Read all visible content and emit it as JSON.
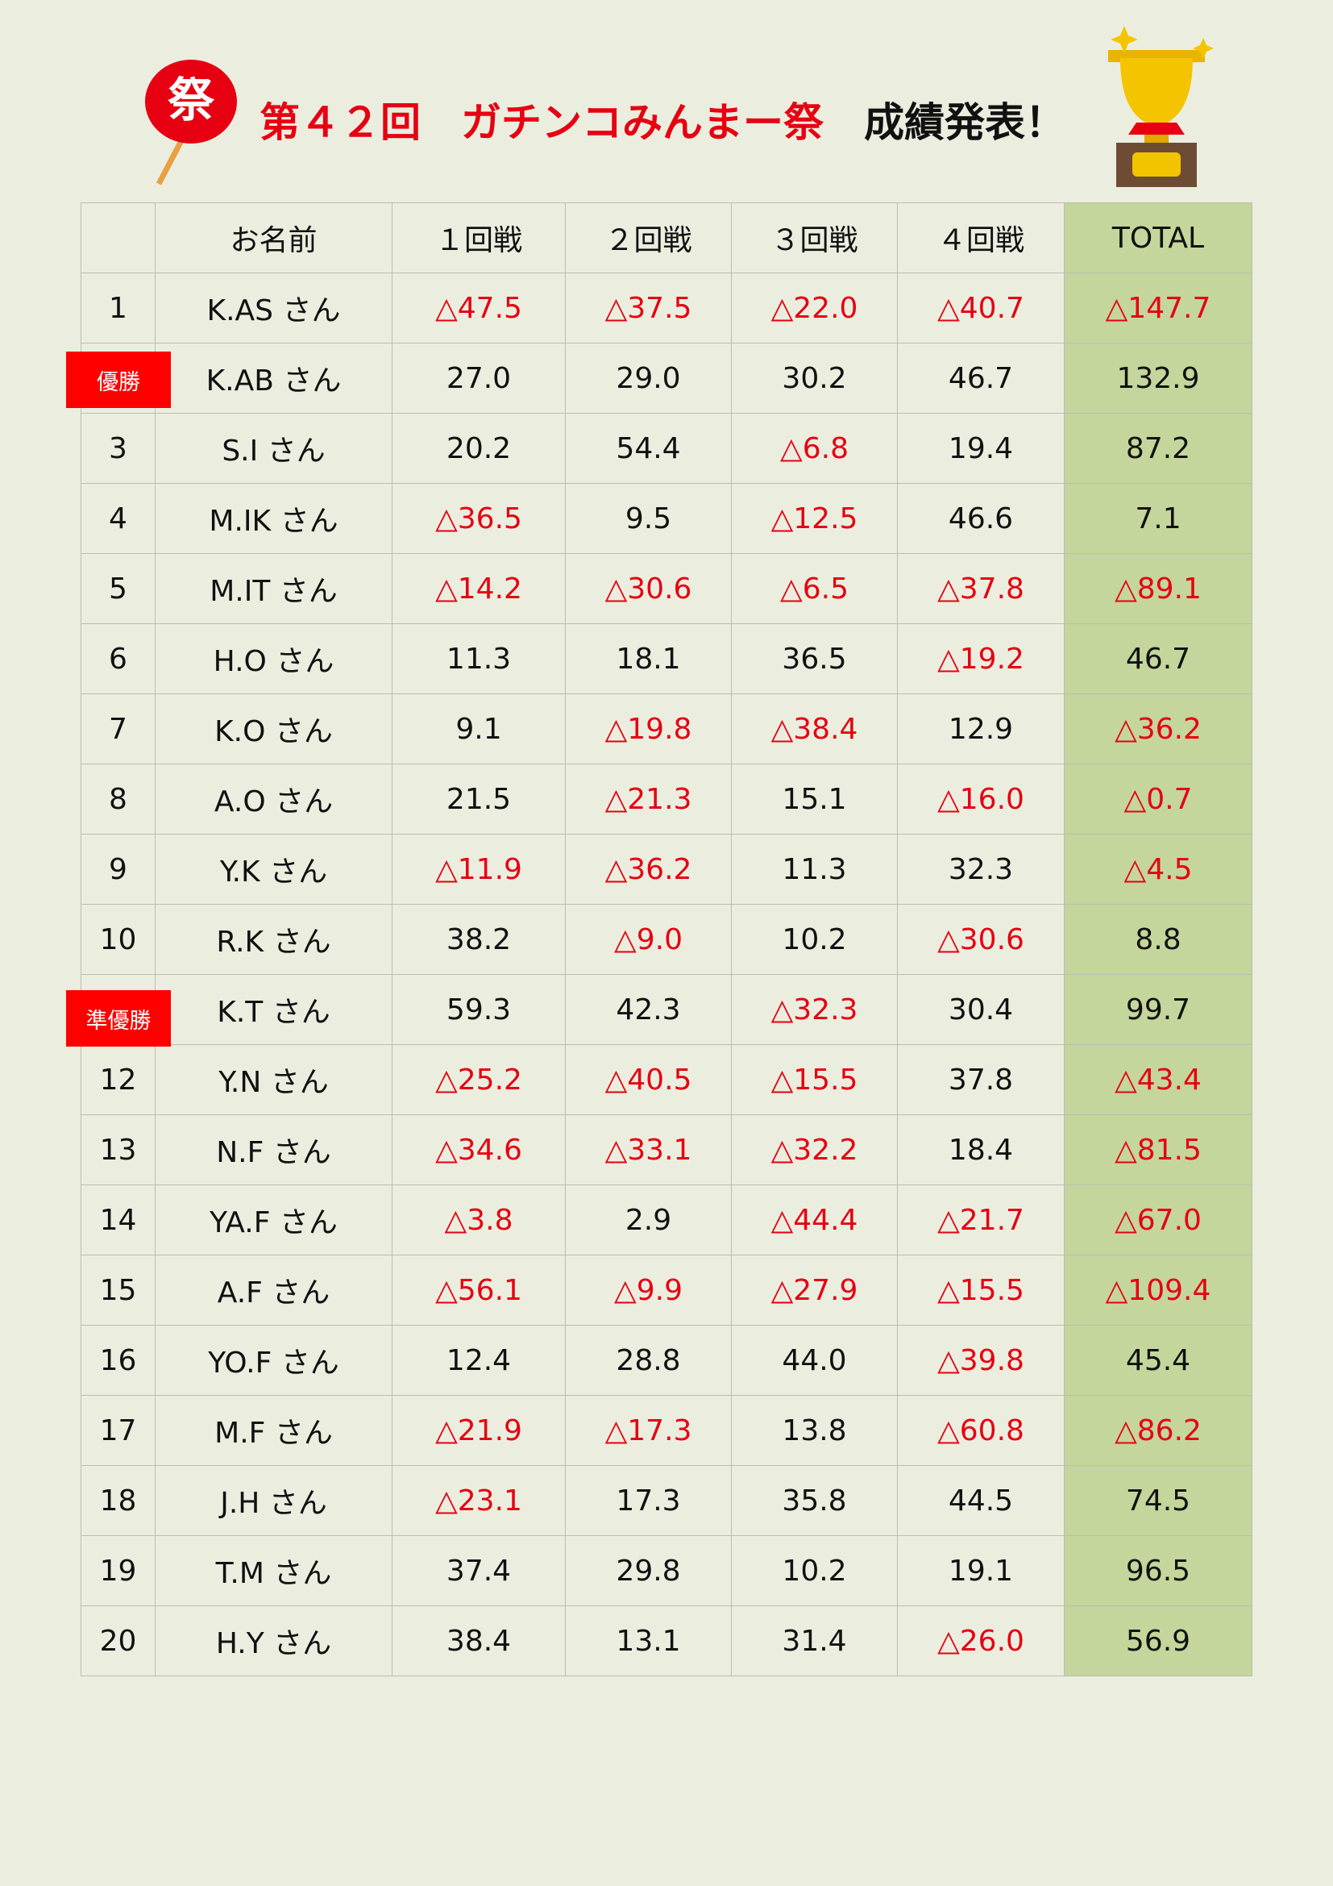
{
  "header": {
    "title": "第４２回　ガチンコみんまー祭",
    "subtitle": "成績発表！",
    "fan_label": "祭"
  },
  "table": {
    "columns": [
      "お名前",
      "１回戦",
      "２回戦",
      "３回戦",
      "４回戦",
      "TOTAL"
    ],
    "rows": [
      {
        "rank": "1",
        "name": "K.AS さん",
        "scores": [
          "△47.5",
          "△37.5",
          "△22.0",
          "△40.7"
        ],
        "total": "△147.7"
      },
      {
        "badge": "優勝",
        "name": "K.AB さん",
        "scores": [
          "27.0",
          "29.0",
          "30.2",
          "46.7"
        ],
        "total": "132.9"
      },
      {
        "rank": "3",
        "name": "S.I さん",
        "scores": [
          "20.2",
          "54.4",
          "△6.8",
          "19.4"
        ],
        "total": "87.2"
      },
      {
        "rank": "4",
        "name": "M.IK さん",
        "scores": [
          "△36.5",
          "9.5",
          "△12.5",
          "46.6"
        ],
        "total": "7.1"
      },
      {
        "rank": "5",
        "name": "M.IT さん",
        "scores": [
          "△14.2",
          "△30.6",
          "△6.5",
          "△37.8"
        ],
        "total": "△89.1"
      },
      {
        "rank": "6",
        "name": "H.O さん",
        "scores": [
          "11.3",
          "18.1",
          "36.5",
          "△19.2"
        ],
        "total": "46.7"
      },
      {
        "rank": "7",
        "name": "K.O さん",
        "scores": [
          "9.1",
          "△19.8",
          "△38.4",
          "12.9"
        ],
        "total": "△36.2"
      },
      {
        "rank": "8",
        "name": "A.O さん",
        "scores": [
          "21.5",
          "△21.3",
          "15.1",
          "△16.0"
        ],
        "total": "△0.7"
      },
      {
        "rank": "9",
        "name": "Y.K さん",
        "scores": [
          "△11.9",
          "△36.2",
          "11.3",
          "32.3"
        ],
        "total": "△4.5"
      },
      {
        "rank": "10",
        "name": "R.K さん",
        "scores": [
          "38.2",
          "△9.0",
          "10.2",
          "△30.6"
        ],
        "total": "8.8"
      },
      {
        "badge": "準優勝",
        "name": "K.T さん",
        "scores": [
          "59.3",
          "42.3",
          "△32.3",
          "30.4"
        ],
        "total": "99.7"
      },
      {
        "rank": "12",
        "name": "Y.N さん",
        "scores": [
          "△25.2",
          "△40.5",
          "△15.5",
          "37.8"
        ],
        "total": "△43.4"
      },
      {
        "rank": "13",
        "name": "N.F さん",
        "scores": [
          "△34.6",
          "△33.1",
          "△32.2",
          "18.4"
        ],
        "total": "△81.5"
      },
      {
        "rank": "14",
        "name": "YA.F さん",
        "scores": [
          "△3.8",
          "2.9",
          "△44.4",
          "△21.7"
        ],
        "total": "△67.0"
      },
      {
        "rank": "15",
        "name": "A.F さん",
        "scores": [
          "△56.1",
          "△9.9",
          "△27.9",
          "△15.5"
        ],
        "total": "△109.4"
      },
      {
        "rank": "16",
        "name": "YO.F さん",
        "scores": [
          "12.4",
          "28.8",
          "44.0",
          "△39.8"
        ],
        "total": "45.4"
      },
      {
        "rank": "17",
        "name": "M.F さん",
        "scores": [
          "△21.9",
          "△17.3",
          "13.8",
          "△60.8"
        ],
        "total": "△86.2"
      },
      {
        "rank": "18",
        "name": "J.H さん",
        "scores": [
          "△23.1",
          "17.3",
          "35.8",
          "44.5"
        ],
        "total": "74.5"
      },
      {
        "rank": "19",
        "name": "T.M さん",
        "scores": [
          "37.4",
          "29.8",
          "10.2",
          "19.1"
        ],
        "total": "96.5"
      },
      {
        "rank": "20",
        "name": "H.Y さん",
        "scores": [
          "38.4",
          "13.1",
          "31.4",
          "△26.0"
        ],
        "total": "56.9"
      }
    ]
  }
}
